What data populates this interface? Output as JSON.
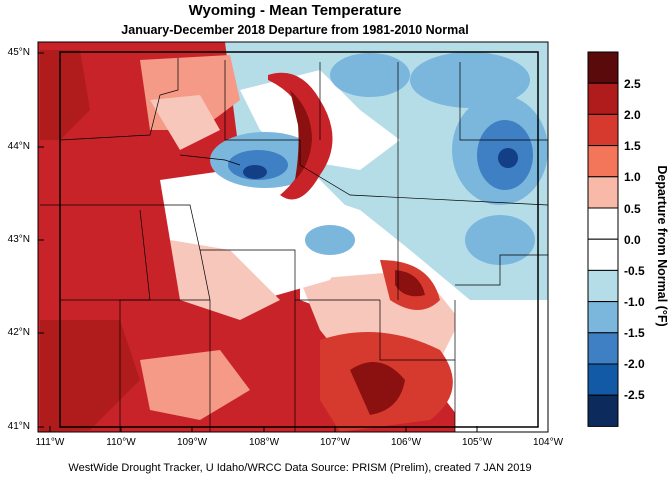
{
  "title": "Wyoming - Mean Temperature",
  "subtitle": "January-December 2018  Departure from 1981-2010 Normal",
  "footer": "WestWide Drought Tracker, U Idaho/WRCC Data Source: PRISM (Prelim), created  7 JAN 2019",
  "lat_ticks": [
    "45°N",
    "44°N",
    "43°N",
    "42°N",
    "41°N"
  ],
  "lon_ticks": [
    "111°W",
    "110°W",
    "109°W",
    "108°W",
    "107°W",
    "106°W",
    "105°W",
    "104°W"
  ],
  "colorbar": {
    "title": "Departure from Normal (°F)",
    "labels": [
      "2.5",
      "2.0",
      "1.5",
      "1.0",
      "0.5",
      "0.0",
      "-0.5",
      "-1.0",
      "-1.5",
      "-2.0",
      "-2.5"
    ],
    "colors": [
      "#5a0a0a",
      "#b01c1c",
      "#d63a2f",
      "#f4765a",
      "#f8b9a9",
      "#ffffff",
      "#ffffff",
      "#b5dde8",
      "#7bb6dd",
      "#3f7fc4",
      "#135aa6",
      "#0c2a5b"
    ]
  },
  "map": {
    "colors": {
      "dark_red": "#8b1010",
      "red": "#c9232a",
      "mid_red": "#e04a3a",
      "light_red": "#f49a86",
      "pink": "#f8c7bb",
      "white": "#ffffff",
      "light_blue": "#b5dde8",
      "blue": "#7bb6dd",
      "mid_blue": "#3f7fc4",
      "dark_blue": "#123f86"
    }
  }
}
